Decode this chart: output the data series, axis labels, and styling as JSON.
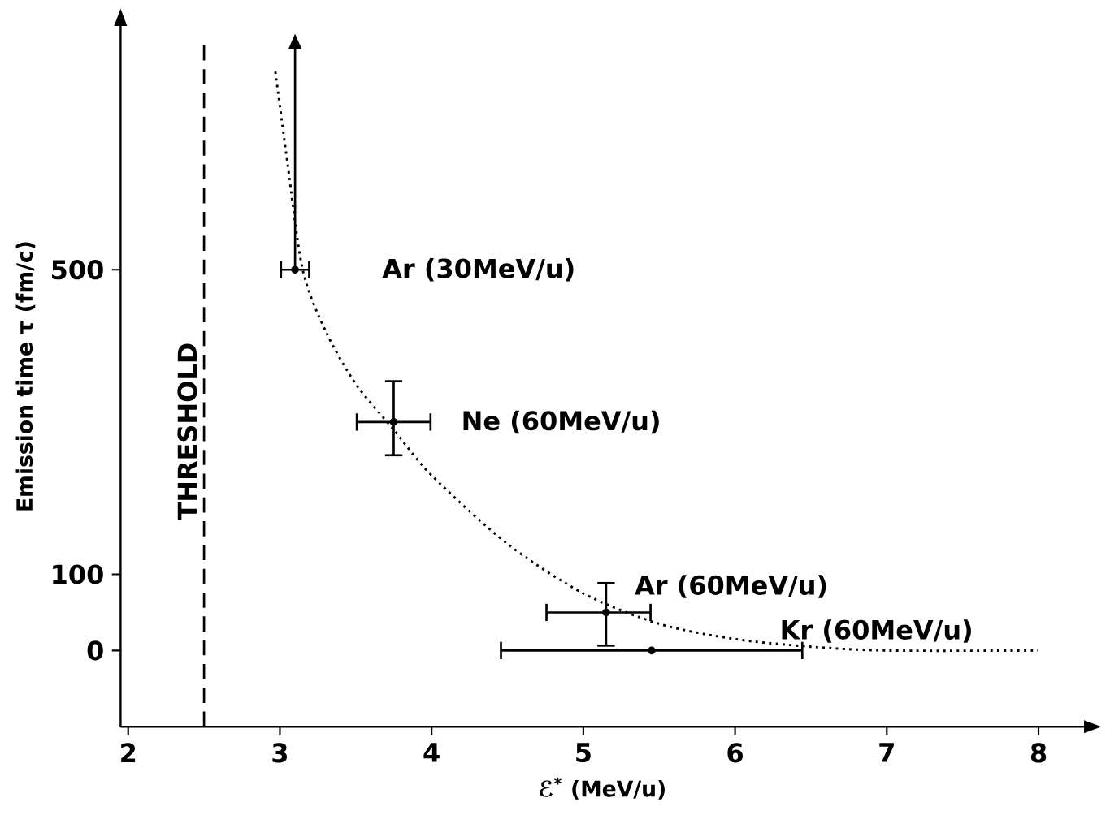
{
  "chart_data": {
    "type": "scatter",
    "xlabel": "ℰ$^{*}$ (MeV/u)",
    "ylabel": "Emission time τ (fm/c)",
    "xlim": [
      1.95,
      8.3
    ],
    "ylim": [
      -100,
      820
    ],
    "xticks": [
      2,
      3,
      4,
      5,
      6,
      7,
      8
    ],
    "yticks": [
      0,
      100,
      500
    ],
    "marker": "circle",
    "series": [
      {
        "type": "line",
        "color": "#000000",
        "line_style": "dotted",
        "marker": "none",
        "x": [
          2.97,
          3.05,
          3.15,
          3.3,
          3.5,
          3.75,
          4.0,
          4.5,
          5.0,
          5.5,
          6.0,
          6.5,
          7.0,
          8.0
        ],
        "values": [
          760,
          640,
          500,
          420,
          350,
          290,
          230,
          140,
          75,
          35,
          15,
          5,
          0,
          0
        ]
      },
      {
        "name": "Ar (30MeV/u)",
        "color": "#000000",
        "x": [
          3.1
        ],
        "values": [
          500
        ],
        "xerrors": [
          [
            3.0,
            3.2
          ]
        ],
        "errors": [
          [
            500,
            790
          ]
        ]
      },
      {
        "name": "Ne (60MeV/u)",
        "color": "#000000",
        "x": [
          3.75
        ],
        "values": [
          300
        ],
        "xerrors": [
          [
            3.5,
            4.0
          ]
        ],
        "errors": [
          [
            255,
            355
          ]
        ]
      },
      {
        "name": "Ar (60MeV/u)",
        "color": "#000000",
        "x": [
          5.15
        ],
        "values": [
          50
        ],
        "xerrors": [
          [
            4.75,
            5.45
          ]
        ],
        "errors": [
          [
            5,
            90
          ]
        ]
      },
      {
        "name": "Kr (60MeV/u)",
        "color": "#000000",
        "x": [
          5.45
        ],
        "values": [
          0
        ],
        "xerrors": [
          [
            4.45,
            6.45
          ]
        ]
      }
    ],
    "ref_lines": [
      {
        "axis": "x",
        "value": 2.5,
        "label": "THRESHOLD",
        "color": "#000000",
        "line_style": "dashed"
      }
    ]
  }
}
